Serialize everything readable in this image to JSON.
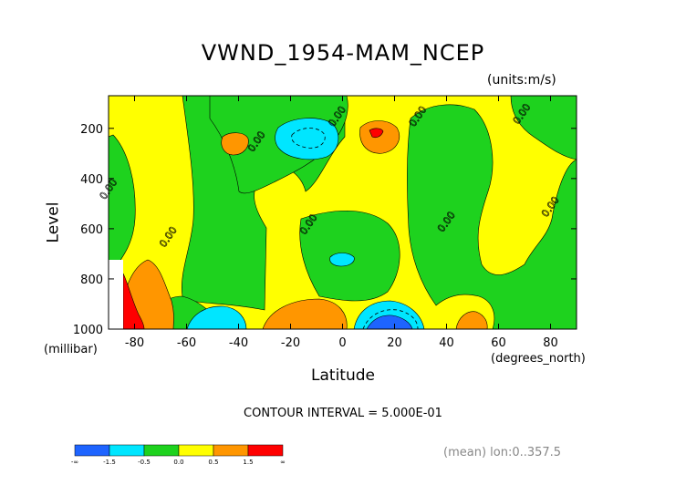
{
  "chart_data": {
    "type": "contour",
    "title": "VWND_1954-MAM_NCEP",
    "units_label": "(units:m/s)",
    "ylabel": "Level",
    "ylabel_unit": "(millibar)",
    "xlabel": "Latitude",
    "xlabel_unit": "(degrees_north)",
    "xlim": [
      -90,
      90
    ],
    "ylim": [
      1000,
      70
    ],
    "x_ticks": [
      -80,
      -60,
      -40,
      -20,
      0,
      20,
      40,
      60,
      80
    ],
    "x_tick_labels": [
      "-80",
      "-60",
      "-40",
      "-20",
      "0",
      "20",
      "40",
      "60",
      "80"
    ],
    "y_ticks": [
      200,
      400,
      600,
      800,
      1000
    ],
    "y_tick_labels": [
      "200",
      "400",
      "600",
      "800",
      "1000"
    ],
    "contour_interval_text": "CONTOUR INTERVAL = 5.000E-01",
    "contour_labels": [
      {
        "text": "0.00",
        "x": 30,
        "y": 160
      },
      {
        "text": "0.00",
        "x": -1,
        "y": 160
      },
      {
        "text": "0.00",
        "x": 70,
        "y": 150
      },
      {
        "text": "0.00",
        "x": -32,
        "y": 260
      },
      {
        "text": "0.00",
        "x": -89,
        "y": 450
      },
      {
        "text": "0.00",
        "x": -66,
        "y": 640
      },
      {
        "text": "0.00",
        "x": -12,
        "y": 590
      },
      {
        "text": "0.00",
        "x": 41,
        "y": 580
      },
      {
        "text": "0.00",
        "x": 81,
        "y": 520
      }
    ],
    "colorbar": {
      "levels": [
        "-∞",
        "-1.5",
        "-0.5",
        "0.0",
        "0.5",
        "1.5",
        "∞"
      ],
      "colors": [
        "#1e64ff",
        "#00e6ff",
        "#1ed21e",
        "#ffff00",
        "#ff9600",
        "#ff0000"
      ]
    },
    "footnote": "(mean) lon:0..357.5"
  }
}
